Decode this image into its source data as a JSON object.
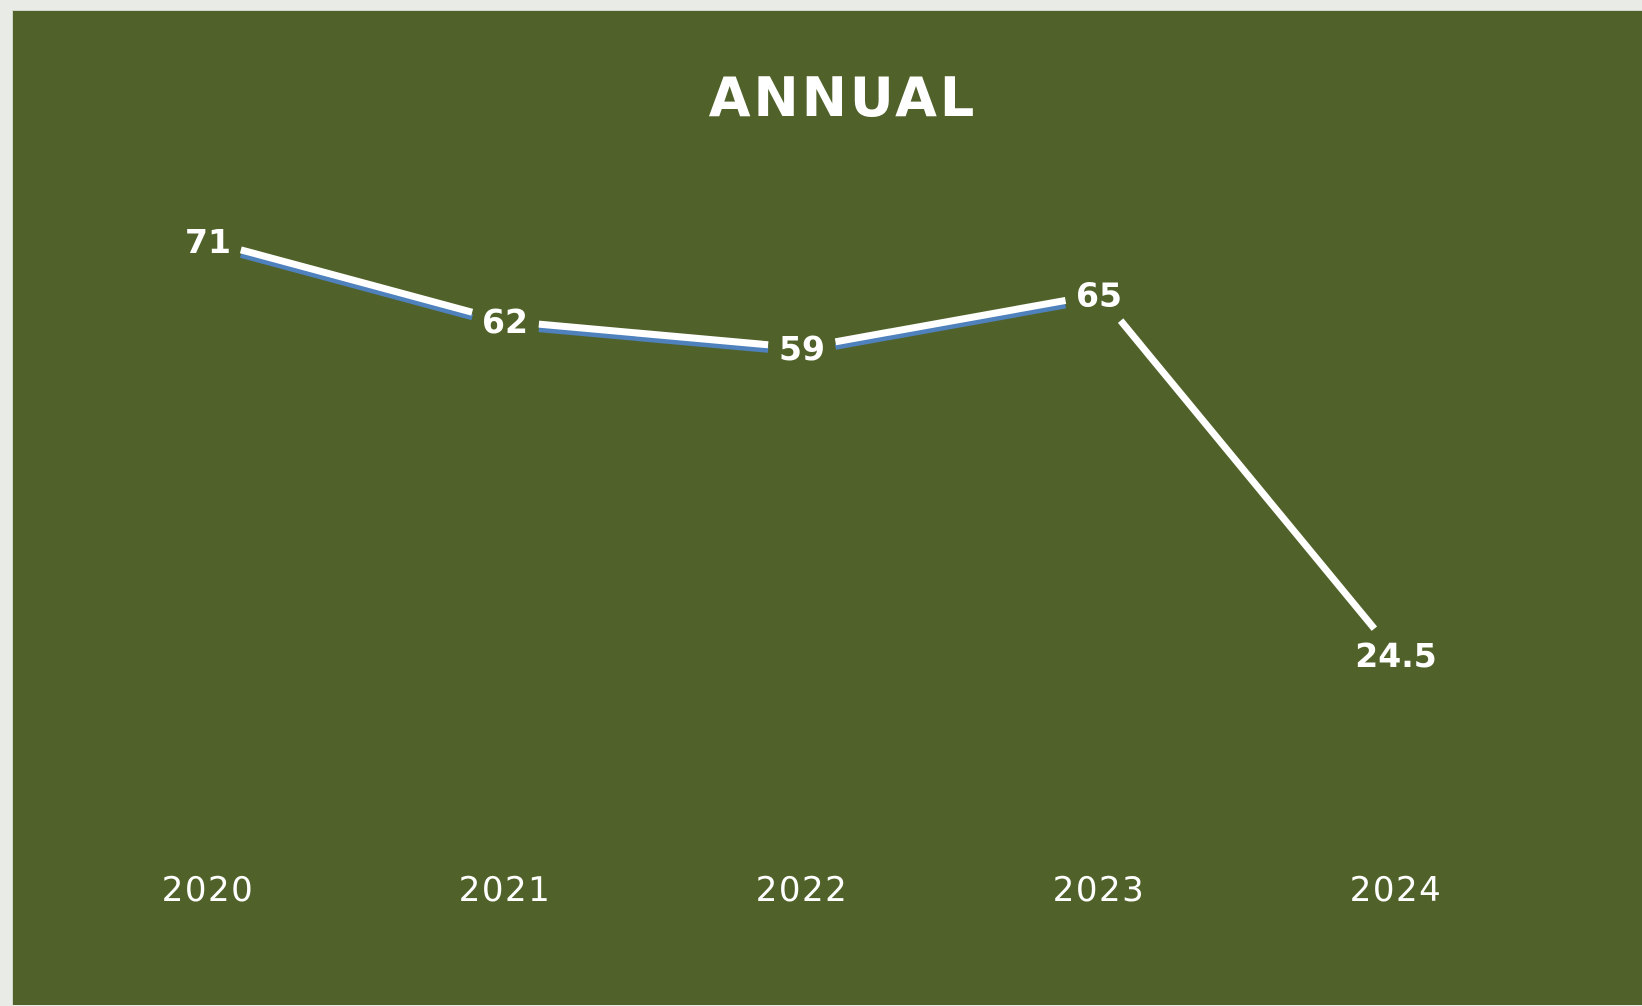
{
  "chart_data": {
    "type": "line",
    "title": "ANNUAL",
    "xlabel": "",
    "ylabel": "",
    "categories": [
      "2020",
      "2021",
      "2022",
      "2023",
      "2024"
    ],
    "series": [
      {
        "values": [
          71,
          62,
          59,
          65,
          24.5
        ]
      }
    ],
    "data_labels": [
      "71",
      "62",
      "59",
      "65",
      "24.5"
    ],
    "ylim": [
      0,
      90
    ],
    "grid": false,
    "drop_lines": true,
    "legend": "none",
    "colors": {
      "background": "#50622a",
      "line": "#ffffff",
      "line_shadow": "#4f81bd",
      "text": "#ffffff",
      "drop_line": "#ffffff"
    }
  }
}
